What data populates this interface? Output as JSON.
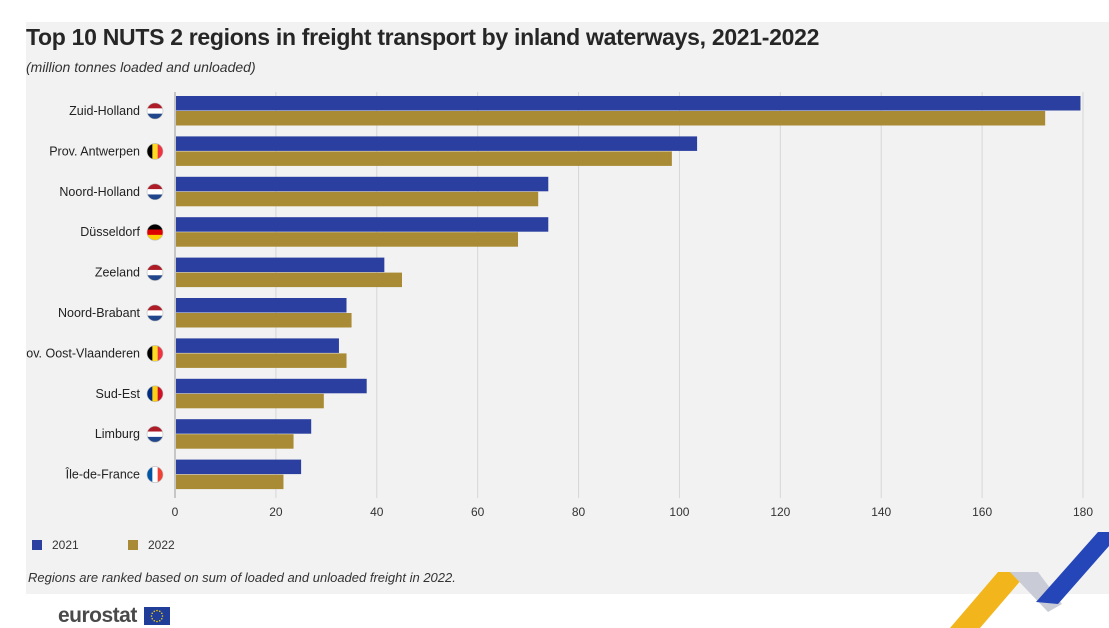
{
  "colors": {
    "series_2021": "#2a3f9f",
    "series_2022": "#a88b34",
    "background": "#f2f2f2",
    "grid": "#d6d6d6"
  },
  "title": "Top 10 NUTS 2 regions in freight transport by inland waterways, 2021-2022",
  "subtitle": "(million tonnes loaded and unloaded)",
  "footnote": "Regions are ranked based on sum of loaded and unloaded freight in 2022.",
  "brand": {
    "name": "eurostat",
    "logo_icon": "eu-flag-icon"
  },
  "chart_data": {
    "type": "bar",
    "orientation": "horizontal",
    "categories": [
      "Zuid-Holland",
      "Prov. Antwerpen",
      "Noord-Holland",
      "Düsseldorf",
      "Zeeland",
      "Noord-Brabant",
      "Prov. Oost-Vlaanderen",
      "Sud-Est",
      "Limburg",
      "Île-de-France"
    ],
    "flags": [
      "netherlands-flag-icon",
      "belgium-flag-icon",
      "netherlands-flag-icon",
      "germany-flag-icon",
      "netherlands-flag-icon",
      "netherlands-flag-icon",
      "belgium-flag-icon",
      "romania-flag-icon",
      "netherlands-flag-icon",
      "france-flag-icon"
    ],
    "series": [
      {
        "name": "2021",
        "values": [
          179.5,
          103.5,
          74,
          74,
          41.5,
          34,
          32.5,
          38,
          27,
          25
        ]
      },
      {
        "name": "2022",
        "values": [
          172.5,
          98.5,
          72,
          68,
          45,
          35,
          34,
          29.5,
          23.5,
          21.5
        ]
      }
    ],
    "xlim": [
      0,
      180
    ],
    "xticks": [
      "0",
      "20",
      "40",
      "60",
      "80",
      "100",
      "120",
      "140",
      "160",
      "180"
    ],
    "grid": "vertical",
    "legend": "bottom-left"
  }
}
